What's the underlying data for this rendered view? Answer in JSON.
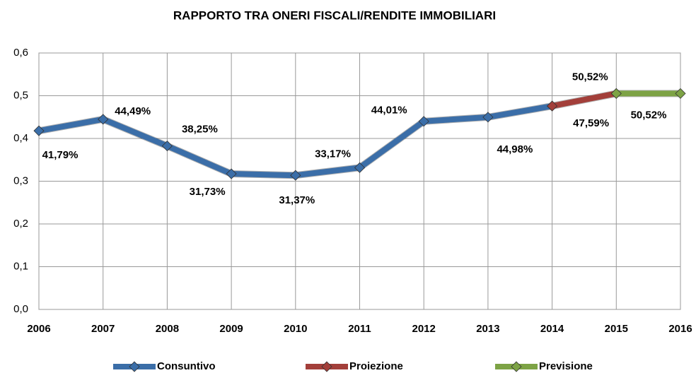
{
  "chart_data": {
    "type": "line",
    "title": "RAPPORTO TRA ONERI FISCALI/RENDITE IMMOBILIARI",
    "categories": [
      "2006",
      "2007",
      "2008",
      "2009",
      "2010",
      "2011",
      "2012",
      "2013",
      "2014",
      "2015",
      "2016"
    ],
    "ylim": [
      0,
      0.6
    ],
    "yticks": [
      {
        "value": 0,
        "label": "0,0"
      },
      {
        "value": 0.1,
        "label": "0,1"
      },
      {
        "value": 0.2,
        "label": "0,2"
      },
      {
        "value": 0.3,
        "label": "0,3"
      },
      {
        "value": 0.4,
        "label": "0,4"
      },
      {
        "value": 0.5,
        "label": "0,5"
      },
      {
        "value": 0.6,
        "label": "0,6"
      }
    ],
    "grid": true,
    "legend": "bottom",
    "series": [
      {
        "name": "Consuntivo",
        "color": "#3b6ea8",
        "values": [
          0.4179,
          0.4449,
          0.3825,
          0.3173,
          0.3137,
          0.3317,
          0.4401,
          0.4498,
          0.4759,
          null,
          null
        ],
        "value_labels": [
          "41,79%",
          "44,49%",
          "38,25%",
          "31,73%",
          "31,37%",
          "33,17%",
          "44,01%",
          "44,98%",
          "47,59%",
          null,
          null
        ]
      },
      {
        "name": "Proiezione",
        "color": "#a33f3a",
        "values": [
          null,
          null,
          null,
          null,
          null,
          null,
          null,
          null,
          0.4759,
          0.5052,
          null
        ],
        "value_labels": [
          null,
          null,
          null,
          null,
          null,
          null,
          null,
          null,
          null,
          "50,52%",
          null
        ]
      },
      {
        "name": "Previsione",
        "color": "#7da345",
        "values": [
          null,
          null,
          null,
          null,
          null,
          null,
          null,
          null,
          null,
          0.5052,
          0.5052
        ],
        "value_labels": [
          null,
          null,
          null,
          null,
          null,
          null,
          null,
          null,
          null,
          null,
          "50,52%"
        ]
      }
    ]
  }
}
